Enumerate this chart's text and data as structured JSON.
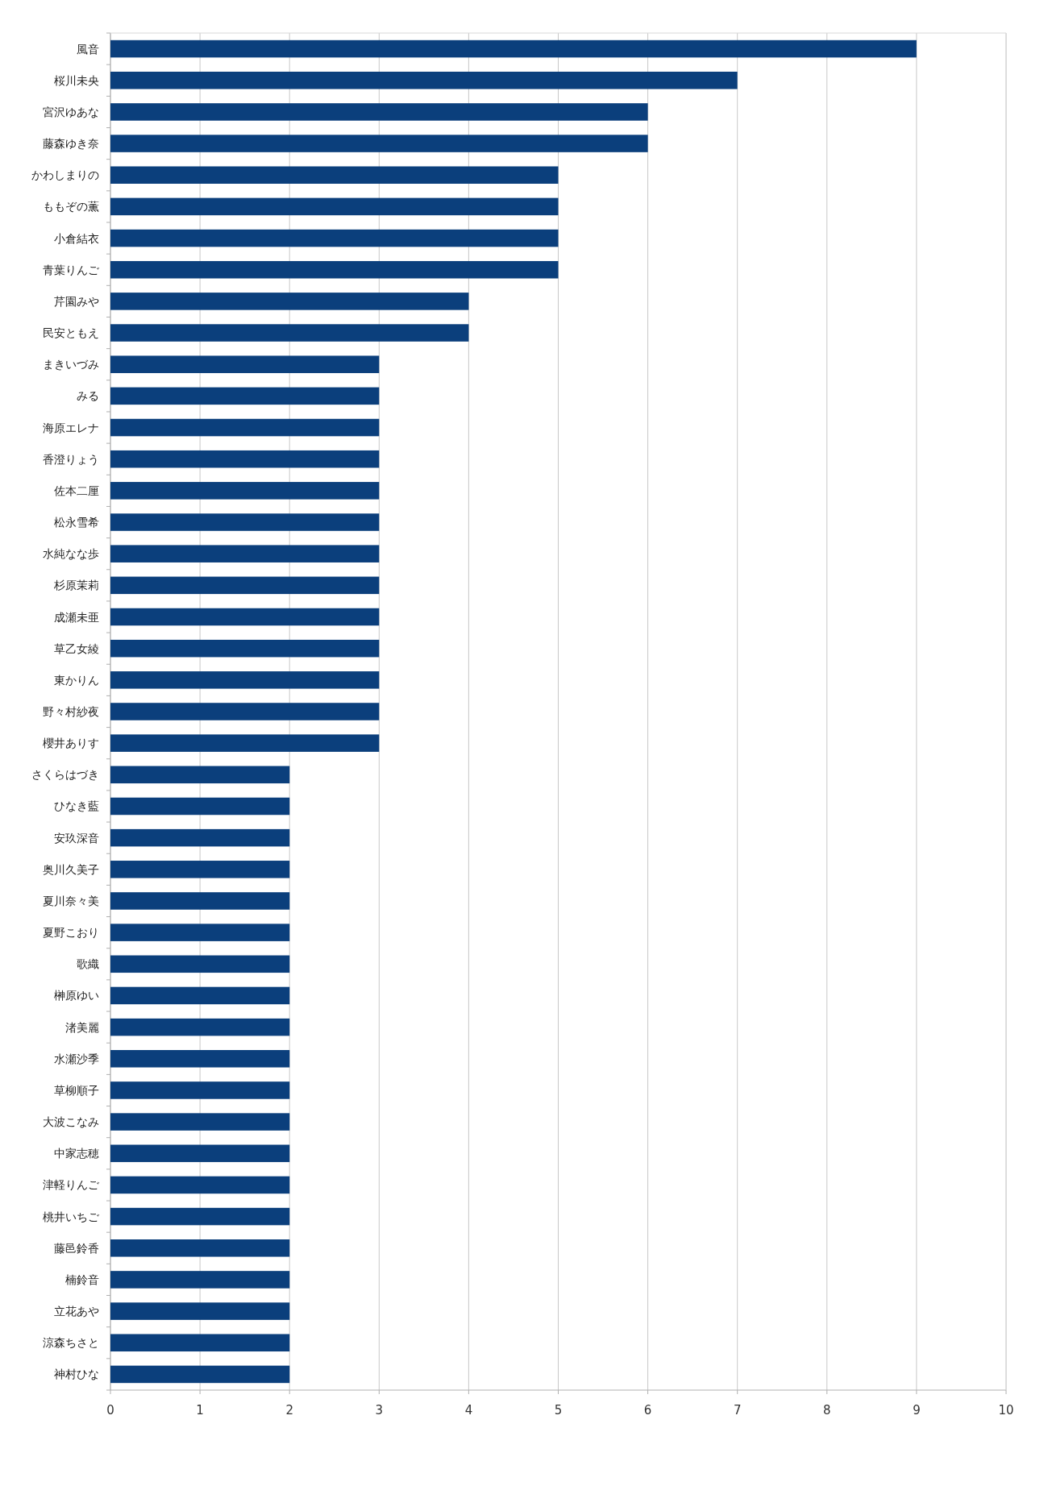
{
  "chart_data": {
    "type": "bar",
    "orientation": "horizontal",
    "grid": "x",
    "color": "#0b3f7c",
    "categories": [
      "風音",
      "桜川未央",
      "宮沢ゆあな",
      "藤森ゆき奈",
      "かわしまりの",
      "ももぞの薫",
      "小倉結衣",
      "青葉りんご",
      "芹園みや",
      "民安ともえ",
      "まきいづみ",
      "みる",
      "海原エレナ",
      "香澄りょう",
      "佐本二厘",
      "松永雪希",
      "水純なな歩",
      "杉原茉莉",
      "成瀬未亜",
      "草乙女綾",
      "東かりん",
      "野々村紗夜",
      "櫻井ありす",
      "さくらはづき",
      "ひなき藍",
      "安玖深音",
      "奥川久美子",
      "夏川奈々美",
      "夏野こおり",
      "歌織",
      "榊原ゆい",
      "渚美麗",
      "水瀬沙季",
      "草柳順子",
      "大波こなみ",
      "中家志穂",
      "津軽りんご",
      "桃井いちご",
      "藤邑鈴香",
      "楠鈴音",
      "立花あや",
      "涼森ちさと",
      "神村ひな"
    ],
    "values": [
      9,
      7,
      6,
      6,
      5,
      5,
      5,
      5,
      4,
      4,
      3,
      3,
      3,
      3,
      3,
      3,
      3,
      3,
      3,
      3,
      3,
      3,
      3,
      2,
      2,
      2,
      2,
      2,
      2,
      2,
      2,
      2,
      2,
      2,
      2,
      2,
      2,
      2,
      2,
      2,
      2,
      2,
      2
    ],
    "xlim": [
      0,
      10
    ],
    "xticks": [
      0,
      1,
      2,
      3,
      4,
      5,
      6,
      7,
      8,
      9,
      10
    ]
  }
}
